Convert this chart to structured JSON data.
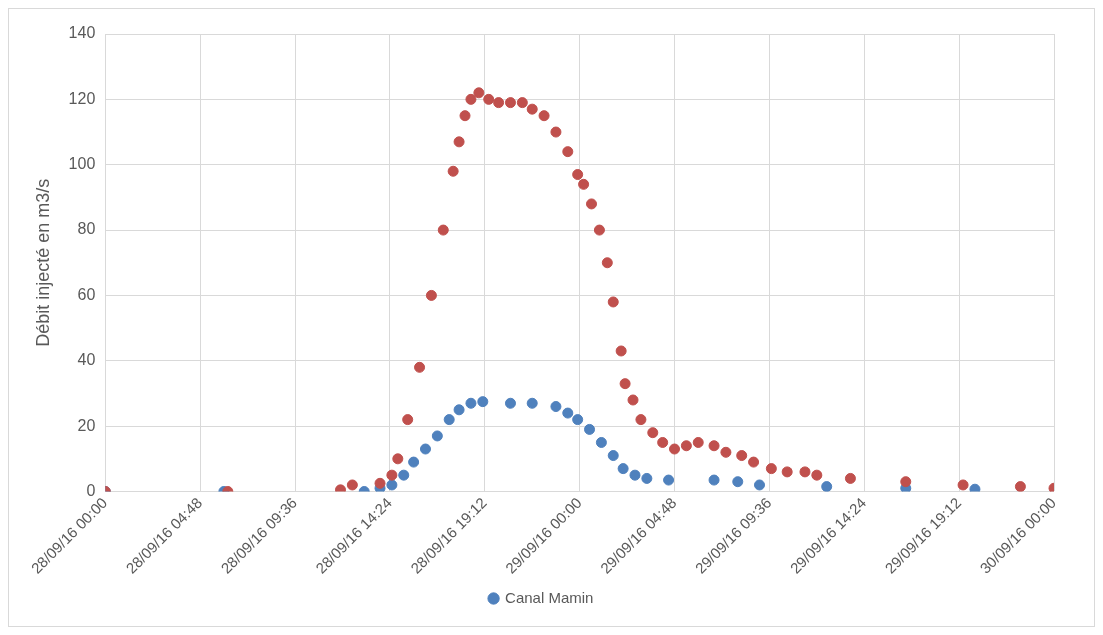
{
  "chart_data": {
    "type": "scatter",
    "ylabel": "Débit injecté en m3/s",
    "xlim": [
      "--09-28T00:00",
      "--09-30T00:00"
    ],
    "xticks": [
      {
        "value": "--09-28T00:00",
        "label": "28/09/16 00:00"
      },
      {
        "value": "--09-28T04:48",
        "label": "28/09/16 04:48"
      },
      {
        "value": "--09-28T09:36",
        "label": "28/09/16 09:36"
      },
      {
        "value": "--09-28T14:24",
        "label": "28/09/16 14:24"
      },
      {
        "value": "--09-28T19:12",
        "label": "28/09/16 19:12"
      },
      {
        "value": "--09-29T00:00",
        "label": "29/09/16 00:00"
      },
      {
        "value": "--09-29T04:48",
        "label": "29/09/16 04:48"
      },
      {
        "value": "--09-29T09:36",
        "label": "29/09/16 09:36"
      },
      {
        "value": "--09-29T14:24",
        "label": "29/09/16 14:24"
      },
      {
        "value": "--09-29T19:12",
        "label": "29/09/16 19:12"
      },
      {
        "value": "--09-30T00:00",
        "label": "30/09/16 00:00"
      }
    ],
    "ylim": [
      0,
      140
    ],
    "yticks": [
      0,
      20,
      40,
      60,
      80,
      100,
      120,
      140
    ],
    "grid": true,
    "legend": "bottom",
    "marker": "circle",
    "series": [
      {
        "color": "#c0504d",
        "x": [
          "--09-28T00:00",
          "--09-28T06:12",
          "--09-28T11:54",
          "--09-28T12:30",
          "--09-28T13:54",
          "--09-28T14:30",
          "--09-28T14:48",
          "--09-28T15:18",
          "--09-28T15:54",
          "--09-28T16:30",
          "--09-28T17:06",
          "--09-28T17:36",
          "--09-28T17:54",
          "--09-28T18:12",
          "--09-28T18:30",
          "--09-28T18:54",
          "--09-28T19:24",
          "--09-28T19:54",
          "--09-28T20:30",
          "--09-28T21:06",
          "--09-28T21:36",
          "--09-28T22:12",
          "--09-28T22:48",
          "--09-28T23:24",
          "--09-28T23:54",
          "--09-29T00:12",
          "--09-29T00:36",
          "--09-29T01:00",
          "--09-29T01:24",
          "--09-29T01:42",
          "--09-29T02:06",
          "--09-29T02:18",
          "--09-29T02:42",
          "--09-29T03:06",
          "--09-29T03:42",
          "--09-29T04:12",
          "--09-29T04:48",
          "--09-29T05:24",
          "--09-29T06:00",
          "--09-29T06:48",
          "--09-29T07:24",
          "--09-29T08:12",
          "--09-29T08:48",
          "--09-29T09:42",
          "--09-29T10:30",
          "--09-29T11:24",
          "--09-29T12:00",
          "--09-29T13:42",
          "--09-29T16:30",
          "--09-29T19:24",
          "--09-29T22:18",
          "--09-30T00:00"
        ],
        "values": [
          0,
          0,
          0.5,
          2,
          2.5,
          5,
          10,
          22,
          38,
          60,
          80,
          98,
          107,
          115,
          120,
          122,
          120,
          119,
          119,
          119,
          117,
          115,
          110,
          104,
          97,
          94,
          88,
          80,
          70,
          58,
          43,
          33,
          28,
          22,
          18,
          15,
          13,
          14,
          15,
          14,
          12,
          11,
          9,
          7,
          6,
          6,
          5,
          4,
          3,
          2,
          1.5,
          1
        ]
      },
      {
        "name": "Canal Mamin",
        "color": "#4f81bd",
        "x": [
          "--09-28T00:00",
          "--09-28T06:00",
          "--09-28T13:06",
          "--09-28T13:54",
          "--09-28T14:30",
          "--09-28T15:06",
          "--09-28T15:36",
          "--09-28T16:12",
          "--09-28T16:48",
          "--09-28T17:24",
          "--09-28T17:54",
          "--09-28T18:30",
          "--09-28T19:06",
          "--09-28T20:30",
          "--09-28T21:36",
          "--09-28T22:48",
          "--09-28T23:24",
          "--09-28T23:54",
          "--09-29T00:30",
          "--09-29T01:06",
          "--09-29T01:42",
          "--09-29T02:12",
          "--09-29T02:48",
          "--09-29T03:24",
          "--09-29T04:30",
          "--09-29T06:48",
          "--09-29T08:00",
          "--09-29T09:06",
          "--09-29T12:30",
          "--09-29T16:30",
          "--09-29T20:00"
        ],
        "values": [
          0,
          0,
          0,
          1,
          2,
          5,
          9,
          13,
          17,
          22,
          25,
          27,
          27.5,
          27,
          27,
          26,
          24,
          22,
          19,
          15,
          11,
          7,
          5,
          4,
          3.5,
          3.5,
          3,
          2,
          1.5,
          1,
          0.7
        ]
      }
    ]
  }
}
